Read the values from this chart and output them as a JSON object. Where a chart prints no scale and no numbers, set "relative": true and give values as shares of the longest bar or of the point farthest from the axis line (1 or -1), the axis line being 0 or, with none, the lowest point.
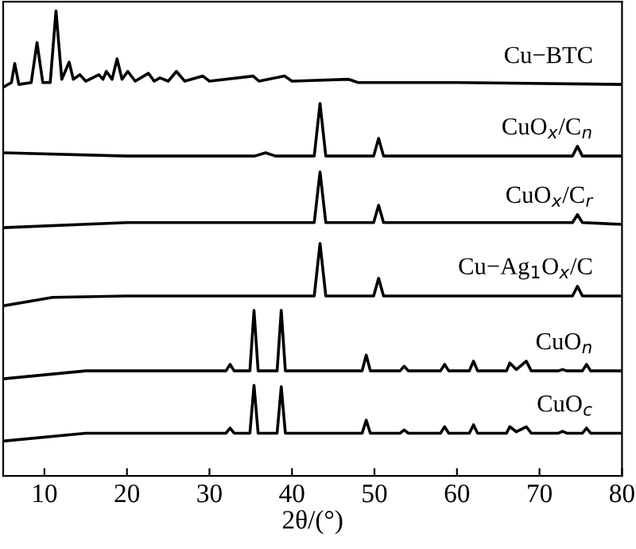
{
  "chart_data": {
    "type": "line",
    "relative": true,
    "xlabel": "2θ/(°)",
    "xlim": [
      5,
      80
    ],
    "xticks": [
      10,
      20,
      30,
      40,
      50,
      60,
      70,
      80
    ],
    "tick_labels": "x",
    "grid": false,
    "legend": false,
    "marker": "none",
    "line_style": "solid",
    "series": [
      {
        "name": "Cu−BTC",
        "color": "#000000",
        "x": [
          5,
          6.0,
          6.4,
          6.9,
          8.4,
          9.1,
          9.8,
          10.7,
          11.4,
          12.1,
          13.0,
          13.5,
          14.3,
          15.0,
          16.6,
          17.1,
          17.5,
          18.2,
          18.8,
          19.4,
          20.1,
          21,
          22.6,
          23.3,
          24.0,
          25,
          26.0,
          27,
          29.2,
          30,
          35.3,
          36,
          39.1,
          40,
          46.9,
          48,
          60,
          80
        ],
        "values": [
          0.836,
          0.846,
          0.887,
          0.842,
          0.846,
          0.932,
          0.846,
          0.846,
          1.0,
          0.853,
          0.89,
          0.853,
          0.863,
          0.849,
          0.863,
          0.853,
          0.87,
          0.853,
          0.897,
          0.853,
          0.87,
          0.849,
          0.866,
          0.849,
          0.856,
          0.849,
          0.87,
          0.849,
          0.86,
          0.849,
          0.86,
          0.849,
          0.86,
          0.849,
          0.853,
          0.846,
          0.846,
          0.842
        ]
      },
      {
        "name": "CuO$_{x}$/C$_{n}$",
        "color": "#000000",
        "x": [
          5,
          20,
          35.5,
          36.8,
          38,
          42.7,
          43.4,
          44.1,
          49.9,
          50.5,
          51.1,
          74,
          74.6,
          75.2,
          80
        ],
        "values": [
          0.695,
          0.688,
          0.688,
          0.695,
          0.688,
          0.688,
          0.801,
          0.688,
          0.688,
          0.726,
          0.688,
          0.688,
          0.709,
          0.688,
          0.688
        ]
      },
      {
        "name": "CuO$_{x}$/C$_{r}$",
        "color": "#000000",
        "x": [
          5,
          20,
          42.7,
          43.4,
          44.1,
          49.9,
          50.5,
          51.1,
          74,
          74.6,
          75.2,
          80
        ],
        "values": [
          0.534,
          0.545,
          0.545,
          0.654,
          0.545,
          0.545,
          0.582,
          0.545,
          0.545,
          0.562,
          0.545,
          0.541
        ]
      },
      {
        "name": "Cu−Ag$_{1}$O$_{x}$/C",
        "color": "#000000",
        "x": [
          5,
          11,
          20,
          42.7,
          43.4,
          44.1,
          49.9,
          50.5,
          51.1,
          74,
          74.6,
          75.2,
          80
        ],
        "values": [
          0.366,
          0.384,
          0.387,
          0.387,
          0.5,
          0.387,
          0.387,
          0.425,
          0.387,
          0.387,
          0.408,
          0.387,
          0.387
        ]
      },
      {
        "name": "CuO$_{n}$",
        "color": "#000000",
        "x": [
          5,
          15,
          32,
          32.5,
          33,
          34.9,
          35.4,
          35.9,
          38.2,
          38.7,
          39.2,
          48.5,
          49.0,
          49.5,
          53.1,
          53.6,
          54.1,
          58.0,
          58.5,
          59.0,
          61.5,
          62.0,
          62.5,
          66.0,
          66.4,
          67.2,
          68.4,
          69.0,
          72.3,
          72.8,
          73.3,
          75.2,
          75.7,
          76.2,
          80
        ],
        "values": [
          0.209,
          0.226,
          0.226,
          0.24,
          0.226,
          0.226,
          0.356,
          0.226,
          0.226,
          0.356,
          0.226,
          0.226,
          0.26,
          0.226,
          0.226,
          0.236,
          0.226,
          0.226,
          0.24,
          0.226,
          0.226,
          0.247,
          0.226,
          0.226,
          0.243,
          0.229,
          0.247,
          0.226,
          0.226,
          0.229,
          0.226,
          0.226,
          0.24,
          0.226,
          0.226
        ]
      },
      {
        "name": "CuO$_{c}$",
        "color": "#000000",
        "x": [
          5,
          15,
          32,
          32.5,
          33,
          34.9,
          35.4,
          35.9,
          38.2,
          38.7,
          39.2,
          48.5,
          49.0,
          49.5,
          53.1,
          53.6,
          54.1,
          58.0,
          58.5,
          59.0,
          61.5,
          62.0,
          62.5,
          66.0,
          66.4,
          67.2,
          68.4,
          69.0,
          72.3,
          72.8,
          73.3,
          75.2,
          75.7,
          76.2,
          80
        ],
        "values": [
          0.075,
          0.092,
          0.092,
          0.103,
          0.092,
          0.092,
          0.195,
          0.092,
          0.092,
          0.192,
          0.092,
          0.092,
          0.12,
          0.092,
          0.092,
          0.099,
          0.092,
          0.092,
          0.106,
          0.092,
          0.092,
          0.11,
          0.092,
          0.092,
          0.106,
          0.095,
          0.106,
          0.092,
          0.092,
          0.096,
          0.092,
          0.092,
          0.103,
          0.092,
          0.092
        ]
      }
    ]
  }
}
